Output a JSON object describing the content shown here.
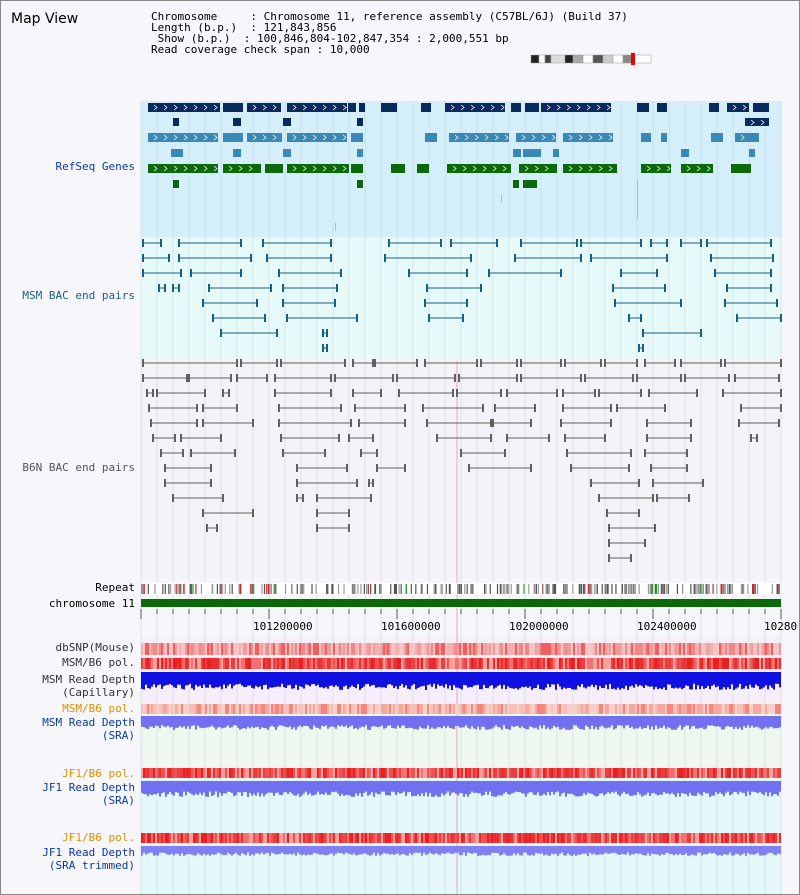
{
  "page": {
    "title": "Map View"
  },
  "info": {
    "chromosome_label": "Chromosome",
    "chromosome_value": "Chromosome 11, reference assembly (C57BL/6J) (Build 37)",
    "length_label": "Length (b.p.)",
    "length_value": "121,843,856",
    "show_label": "Show (b.p.)",
    "show_value": "100,846,804-102,847,354 : 2,000,551 bp",
    "coverage_label": "Read coverage check span",
    "coverage_value": "10,000"
  },
  "tracks": {
    "refseq": "RefSeq Genes",
    "msm_bac": "MSM BAC end pairs",
    "b6n_bac": "B6N BAC end pairs",
    "repeat": "Repeat",
    "chromosome": "chromosome 11",
    "dbsnp": "dbSNP(Mouse)",
    "msm_b6_pol": "MSM/B6 pol.",
    "msm_read_cap_1": "MSM Read Depth",
    "msm_read_cap_2": "(Capillary)",
    "msm_b6_pol2": "MSM/B6 pol.",
    "msm_read_sra_1": "MSM Read Depth",
    "msm_read_sra_2": "(SRA)",
    "jf1_pol": "JF1/B6 pol.",
    "jf1_read_sra_1": "JF1 Read Depth",
    "jf1_read_sra_2": "(SRA)",
    "jf1_pol2": "JF1/B6 pol.",
    "jf1_read_trim_1": "JF1 Read Depth",
    "jf1_read_trim_2": "(SRA trimmed)"
  },
  "axis": {
    "ticks": [
      "101200000",
      "101600000",
      "102000000",
      "102400000",
      "10280"
    ]
  },
  "colors": {
    "refseq_bg": "#d4eefa",
    "bac_bg": "#e6fafa",
    "gene_dark": "#0a2a5e",
    "gene_mid": "#3a88b8",
    "gene_green": "#0a6a0a",
    "msm_pair": "#1a5f80",
    "b6n_pair": "#606060",
    "chromosome": "#0a6a0a",
    "pol_red": "#e8302a",
    "depth_blue": "#1010e0",
    "depth_light": "#7070f0",
    "label_blue": "#0a3aa0",
    "label_orange": "#e09000",
    "label_teal": "#1a5f80"
  }
}
